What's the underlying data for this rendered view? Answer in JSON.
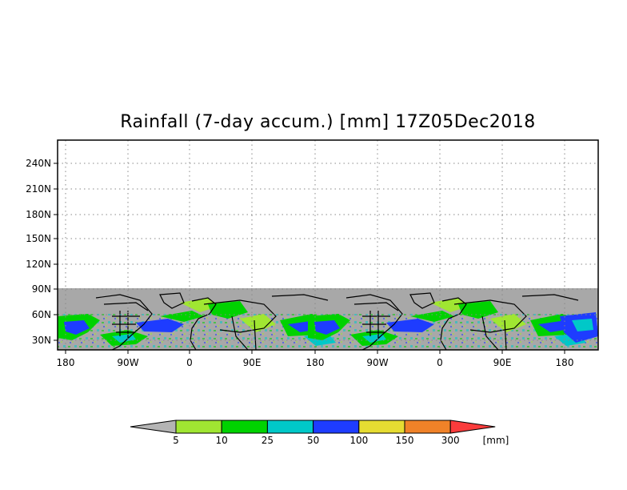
{
  "title": "Rainfall (7-day accum.) [mm] 17Z05Dec2018",
  "map": {
    "y_ticks": [
      "240N",
      "210N",
      "180N",
      "150N",
      "120N",
      "90N",
      "60N",
      "30N"
    ],
    "x_ticks": [
      "180",
      "90W",
      "0",
      "90E",
      "180",
      "90W",
      "0",
      "90E",
      "180"
    ],
    "grid": "dotted"
  },
  "colorbar": {
    "values": [
      "5",
      "10",
      "25",
      "50",
      "100",
      "150",
      "300"
    ],
    "unit": "[mm]",
    "under_color": "#b4b4b4",
    "colors": [
      "#a0e632",
      "#00d200",
      "#00c8c8",
      "#1e3cff",
      "#e6dc32",
      "#f08228",
      "#fa3c3c"
    ]
  },
  "colors": {
    "background": "#ffffff",
    "land_gray": "#a8a8a8",
    "coast": "#000000"
  }
}
